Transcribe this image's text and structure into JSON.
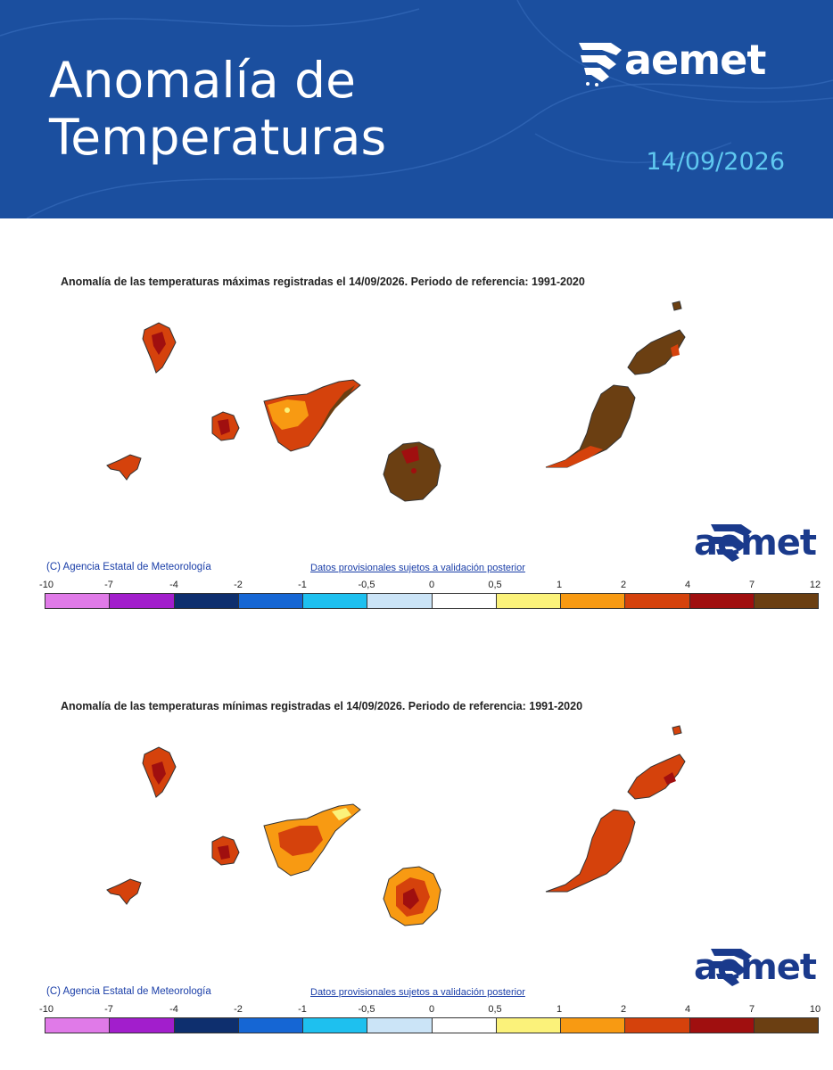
{
  "header": {
    "title_line1": "Anomalía de",
    "title_line2": "Temperaturas",
    "date": "14/09/2026",
    "logo": "aemet",
    "background_color": "#1b4f9f",
    "date_color": "#5fc8f0"
  },
  "maps": [
    {
      "title": "Anomalía de las temperaturas máximas registradas el 14/09/2026. Periodo de referencia: 1991-2020",
      "copyright": "(C) Agencia Estatal de Meteorología",
      "provisional": "Datos provisionales sujetos a validación posterior",
      "watermark": "aemet",
      "scale_ticks": [
        "-10",
        "-7",
        "-4",
        "-2",
        "-1",
        "-0,5",
        "0",
        "0,5",
        "1",
        "2",
        "4",
        "7",
        "12"
      ],
      "scale_colors": [
        "#e07ae8",
        "#a21ecc",
        "#0e2f6e",
        "#1566d4",
        "#1ec0ef",
        "#cbe4f7",
        "#ffffff",
        "#fbf27a",
        "#f89a12",
        "#d5420c",
        "#a00f0f",
        "#6b3f12"
      ]
    },
    {
      "title": "Anomalía de las temperaturas mínimas registradas el 14/09/2026. Periodo de referencia: 1991-2020",
      "copyright": "(C) Agencia Estatal de Meteorología",
      "provisional": "Datos provisionales sujetos a validación posterior",
      "watermark": "aemet",
      "scale_ticks": [
        "-10",
        "-7",
        "-4",
        "-2",
        "-1",
        "-0,5",
        "0",
        "0,5",
        "1",
        "2",
        "4",
        "7",
        "10"
      ],
      "scale_colors": [
        "#e07ae8",
        "#a21ecc",
        "#0e2f6e",
        "#1566d4",
        "#1ec0ef",
        "#cbe4f7",
        "#ffffff",
        "#fbf27a",
        "#f89a12",
        "#d5420c",
        "#a00f0f",
        "#6b3f12"
      ]
    }
  ]
}
